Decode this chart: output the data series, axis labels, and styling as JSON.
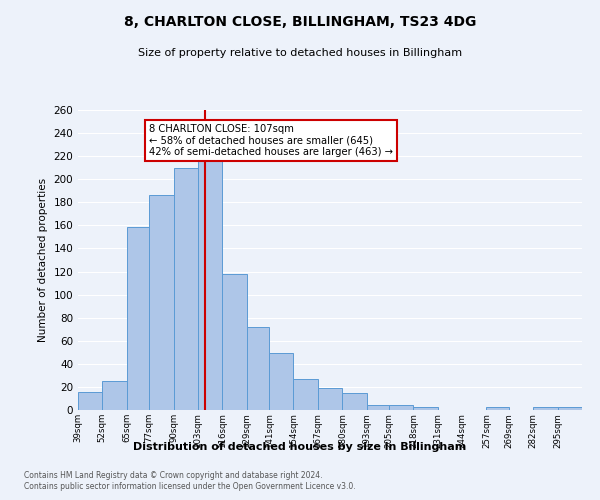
{
  "title": "8, CHARLTON CLOSE, BILLINGHAM, TS23 4DG",
  "subtitle": "Size of property relative to detached houses in Billingham",
  "xlabel": "Distribution of detached houses by size in Billingham",
  "ylabel": "Number of detached properties",
  "bar_labels": [
    "39sqm",
    "52sqm",
    "65sqm",
    "77sqm",
    "90sqm",
    "103sqm",
    "116sqm",
    "129sqm",
    "141sqm",
    "154sqm",
    "167sqm",
    "180sqm",
    "193sqm",
    "205sqm",
    "218sqm",
    "231sqm",
    "244sqm",
    "257sqm",
    "269sqm",
    "282sqm",
    "295sqm"
  ],
  "bar_values": [
    16,
    25,
    159,
    186,
    210,
    220,
    118,
    72,
    49,
    27,
    19,
    15,
    4,
    4,
    3,
    0,
    0,
    3,
    0,
    3,
    3
  ],
  "bin_edges": [
    39,
    52,
    65,
    77,
    90,
    103,
    116,
    129,
    141,
    154,
    167,
    180,
    193,
    205,
    218,
    231,
    244,
    257,
    269,
    282,
    295,
    308
  ],
  "bar_color": "#aec6e8",
  "bar_edge_color": "#5b9bd5",
  "vline_x": 107,
  "vline_color": "#cc0000",
  "annotation_title": "8 CHARLTON CLOSE: 107sqm",
  "annotation_line1": "← 58% of detached houses are smaller (645)",
  "annotation_line2": "42% of semi-detached houses are larger (463) →",
  "annotation_box_color": "#ffffff",
  "annotation_box_edge": "#cc0000",
  "ylim": [
    0,
    260
  ],
  "yticks": [
    0,
    20,
    40,
    60,
    80,
    100,
    120,
    140,
    160,
    180,
    200,
    220,
    240,
    260
  ],
  "bg_color": "#edf2fa",
  "grid_color": "#ffffff",
  "footer1": "Contains HM Land Registry data © Crown copyright and database right 2024.",
  "footer2": "Contains public sector information licensed under the Open Government Licence v3.0."
}
